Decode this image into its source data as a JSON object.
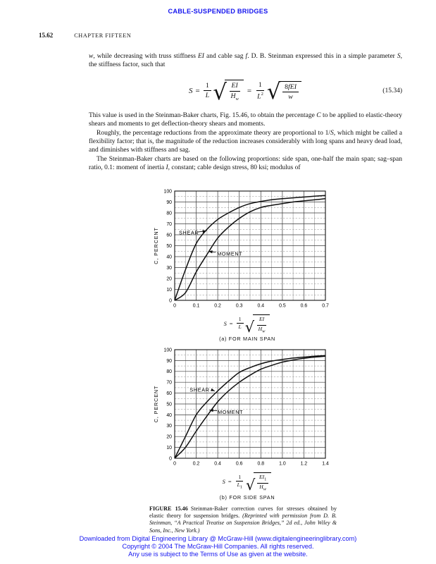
{
  "colors": {
    "link_blue": "#1515ef"
  },
  "page": {
    "header_title": "CABLE-SUSPENDED BRIDGES",
    "page_number": "15.62",
    "chapter_title": "CHAPTER FIFTEEN"
  },
  "body": {
    "intro_segments": [
      {
        "t": "w",
        "i": true
      },
      {
        "t": ", while decreasing with truss stiffness "
      },
      {
        "t": "EI",
        "i": true
      },
      {
        "t": " and cable sag "
      },
      {
        "t": "f",
        "i": true
      },
      {
        "t": ". D. B. Steinman expressed this in a simple parameter "
      },
      {
        "t": "S",
        "i": true
      },
      {
        "t": ", the stiffness factor, such that"
      }
    ],
    "after_equation": [
      {
        "indent": false,
        "segments": [
          {
            "t": "This value is used in the Steinman-Baker charts, Fig. 15.46, to obtain the percentage "
          },
          {
            "t": "C",
            "i": true
          },
          {
            "t": " to be applied to elastic-theory shears and moments to get deflection-theory shears and moments."
          }
        ]
      },
      {
        "indent": true,
        "segments": [
          {
            "t": "Roughly, the percentage reductions from the approximate theory are proportional to 1/"
          },
          {
            "t": "S",
            "i": true
          },
          {
            "t": ", which might be called a flexibility factor; that is, the magnitude of the reduction increases considerably with long spans and heavy dead load, and diminishes with stiffness and sag."
          }
        ]
      },
      {
        "indent": true,
        "segments": [
          {
            "t": "The Steinman-Baker charts are based on the following proportions: side span, one-half the main span; sag–span ratio, 0.1: moment of inertia "
          },
          {
            "t": "I",
            "i": true
          },
          {
            "t": ", constant; cable design stress, 80 ksi; modulus of"
          }
        ]
      }
    ]
  },
  "equation": {
    "number": "(15.34)",
    "lhs": "S",
    "rel1": "=",
    "f1_num": "1",
    "f1_den": "L",
    "r1_num": "EI",
    "r1_den": "H",
    "r1_den_sub": "w",
    "rel2": "=",
    "f2_num": "1",
    "f2_den": "L",
    "f2_den_sup": "2",
    "r2_num_pre": "8",
    "r2_num": "fEI",
    "r2_den": "w"
  },
  "figure": {
    "axis_formula_a": {
      "lhs": "S",
      "rel": "=",
      "frac_num": "1",
      "frac_den": "L",
      "frac_den_sub": "",
      "rad_num": "EI",
      "rad_num_sub": "",
      "rad_den": "H",
      "rad_den_sub": "w"
    },
    "axis_formula_b": {
      "lhs": "S",
      "rel": "=",
      "frac_num": "1",
      "frac_den": "L",
      "frac_den_sub": "1",
      "rad_num": "EI",
      "rad_num_sub": "1",
      "rad_den": "H",
      "rad_den_sub": "w"
    },
    "caption_segments": [
      {
        "t": "FIGURE 15.46",
        "b": true
      },
      {
        "t": " Steinman-Baker correction curves for stresses obtained by elastic theory for suspension bridges. "
      },
      {
        "t": "(Reprinted with permission from D. B. Steinman, “A Practical Treatise on Suspension Bridges,” 2d ed., John Wiley & Sons, Inc., New York.)",
        "i": true
      }
    ]
  },
  "chart_data": [
    {
      "type": "line",
      "title": "(a) FOR MAIN SPAN",
      "ylabel": "C, PERCENT",
      "xlabel_formula": "S = 1/L sqrt(EI/Hw)",
      "xlim": [
        0,
        0.7
      ],
      "ylim": [
        0,
        100
      ],
      "x_major": 0.1,
      "x_minor": 0.05,
      "y_major": 10,
      "y_minor": 5,
      "grid": true,
      "legend_position": "inline-annotations",
      "xtick_labels": [
        "0",
        "0.1",
        "0.2",
        "0.3",
        "0.4",
        "0.5",
        "0.6",
        "0.7"
      ],
      "ytick_labels": [
        "0",
        "10",
        "20",
        "30",
        "40",
        "50",
        "60",
        "70",
        "80",
        "90",
        "100"
      ],
      "series": [
        {
          "name": "SHEAR",
          "x": [
            0,
            0.05,
            0.1,
            0.15,
            0.2,
            0.25,
            0.3,
            0.35,
            0.4,
            0.45,
            0.5,
            0.55,
            0.6,
            0.65,
            0.7
          ],
          "y": [
            0,
            28,
            52,
            65,
            74,
            80,
            85,
            88.5,
            90.5,
            92,
            93,
            93.8,
            94.5,
            95.3,
            96
          ],
          "label": {
            "text": "SHEAR",
            "x": 0.02,
            "y": 62,
            "arrow": [
              [
                0.107,
                62.5
              ],
              [
                0.148,
                63.5
              ]
            ]
          }
        },
        {
          "name": "MOMENT",
          "x": [
            0,
            0.05,
            0.1,
            0.15,
            0.2,
            0.25,
            0.3,
            0.35,
            0.4,
            0.45,
            0.5,
            0.55,
            0.6,
            0.65,
            0.7
          ],
          "y": [
            0,
            7,
            26,
            42,
            57,
            67,
            75,
            81,
            85,
            87,
            88.5,
            90,
            91,
            92,
            93
          ],
          "label": {
            "text": "MOMENT",
            "x": 0.197,
            "y": 42.5,
            "arrow": [
              [
                0.191,
                44
              ],
              [
                0.157,
                44.8
              ]
            ]
          }
        }
      ]
    },
    {
      "type": "line",
      "title": "(b) FOR SIDE SPAN",
      "ylabel": "C, PERCENT",
      "xlabel_formula": "S = 1/L1 sqrt(EI1/Hw)",
      "xlim": [
        0,
        1.4
      ],
      "ylim": [
        0,
        100
      ],
      "x_major": 0.2,
      "x_minor": 0.1,
      "y_major": 10,
      "y_minor": 5,
      "grid": true,
      "legend_position": "inline-annotations",
      "xtick_labels": [
        "0",
        "0.2",
        "0.4",
        "0.6",
        "0.8",
        "1.0",
        "1.2",
        "1.4"
      ],
      "ytick_labels": [
        "0",
        "10",
        "20",
        "30",
        "40",
        "50",
        "60",
        "70",
        "80",
        "90",
        "100"
      ],
      "series": [
        {
          "name": "SHEAR",
          "x": [
            0,
            0.1,
            0.2,
            0.3,
            0.4,
            0.5,
            0.6,
            0.7,
            0.8,
            0.9,
            1.0,
            1.1,
            1.2,
            1.3,
            1.4
          ],
          "y": [
            0,
            20,
            40,
            52,
            62,
            71,
            79,
            83.5,
            87,
            89.5,
            91,
            92.3,
            93.2,
            94,
            94.5
          ],
          "label": {
            "text": "SHEAR",
            "x": 0.14,
            "y": 63,
            "arrow": [
              [
                0.345,
                63
              ],
              [
                0.372,
                61.8
              ]
            ]
          }
        },
        {
          "name": "MOMENT",
          "x": [
            0,
            0.1,
            0.2,
            0.3,
            0.4,
            0.5,
            0.6,
            0.7,
            0.8,
            0.9,
            1.0,
            1.1,
            1.2,
            1.3,
            1.4
          ],
          "y": [
            0,
            10,
            25,
            39,
            52,
            62,
            70,
            76.5,
            82,
            85.5,
            88.5,
            90.5,
            92,
            93.2,
            94
          ],
          "label": {
            "text": "MOMENT",
            "x": 0.4,
            "y": 42.5,
            "arrow": [
              [
                0.393,
                43.8
              ],
              [
                0.322,
                44.2
              ]
            ]
          }
        }
      ]
    }
  ],
  "footer": {
    "line1": "Downloaded from Digital Engineering Library @ McGraw-Hill (www.digitalengineeringlibrary.com)",
    "line2": "Copyright © 2004 The McGraw-Hill Companies. All rights reserved.",
    "line3": "Any use is subject to the Terms of Use as given at the website."
  }
}
